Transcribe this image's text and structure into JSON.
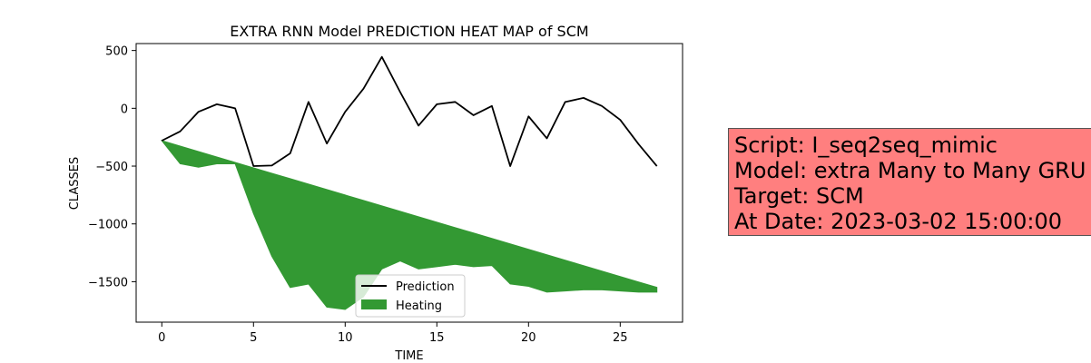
{
  "chart_data": {
    "type": "line",
    "title": "EXTRA RNN Model PREDICTION HEAT MAP of SCM",
    "xlabel": "TIME",
    "ylabel": "CLASSES",
    "xlim": [
      -1.4,
      28.4
    ],
    "ylim": [
      -1850,
      560
    ],
    "xticks": [
      0,
      5,
      10,
      15,
      20,
      25
    ],
    "yticks": [
      500,
      0,
      -500,
      -1000,
      -1500
    ],
    "ytick_labels": [
      "500",
      "0",
      "−500",
      "−1000",
      "−1500"
    ],
    "grid": false,
    "legend_position": "lower center",
    "series": [
      {
        "name": "Prediction",
        "color": "#000000",
        "x": [
          0,
          1,
          2,
          3,
          4,
          5,
          6,
          7,
          8,
          9,
          10,
          11,
          12,
          13,
          14,
          15,
          16,
          17,
          18,
          19,
          20,
          21,
          22,
          23,
          24,
          25,
          26,
          27
        ],
        "values": [
          -280,
          -200,
          -30,
          35,
          0,
          -500,
          -495,
          -390,
          55,
          -305,
          -30,
          170,
          445,
          140,
          -150,
          35,
          55,
          -60,
          20,
          -500,
          -70,
          -260,
          55,
          90,
          20,
          -100,
          -310,
          -500
        ]
      },
      {
        "name": "Heating",
        "type": "area",
        "color": "#339933",
        "x": [
          0,
          1,
          2,
          3,
          4,
          5,
          6,
          7,
          8,
          9,
          10,
          11,
          12,
          13,
          14,
          15,
          16,
          17,
          18,
          19,
          20,
          21,
          22,
          23,
          24,
          25,
          26,
          27
        ],
        "upper": [
          -280,
          -327,
          -374,
          -421,
          -468,
          -515,
          -562,
          -609,
          -656,
          -703,
          -750,
          -797,
          -844,
          -891,
          -938,
          -985,
          -1032,
          -1079,
          -1126,
          -1173,
          -1220,
          -1267,
          -1314,
          -1361,
          -1408,
          -1455,
          -1502,
          -1549
        ],
        "lower": [
          -280,
          -480,
          -510,
          -480,
          -480,
          -910,
          -1280,
          -1550,
          -1520,
          -1720,
          -1740,
          -1630,
          -1390,
          -1320,
          -1390,
          -1370,
          -1350,
          -1370,
          -1360,
          -1520,
          -1540,
          -1590,
          -1580,
          -1570,
          -1570,
          -1580,
          -1590,
          -1590
        ]
      }
    ]
  },
  "info_box": {
    "lines": [
      "Script: I_seq2seq_mimic",
      "Model: extra Many to Many GRU",
      "Target: SCM",
      "At Date: 2023-03-02 15:00:00"
    ],
    "background": "#ff7f7f"
  }
}
